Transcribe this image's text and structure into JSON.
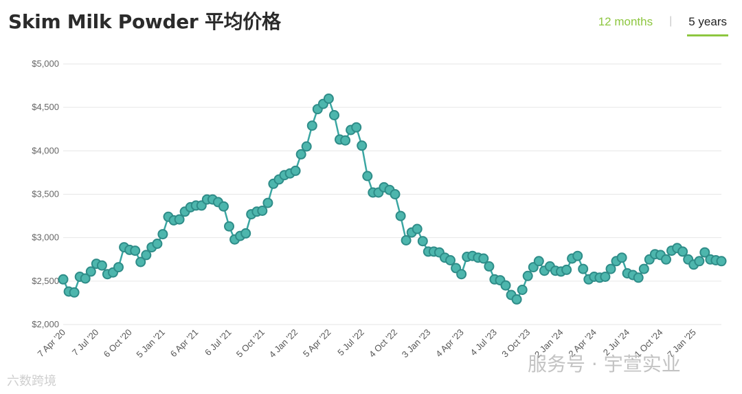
{
  "header": {
    "title": "Skim Milk Powder 平均价格",
    "tabs": [
      {
        "label": "12 months",
        "active": false
      },
      {
        "label": "5 years",
        "active": true
      }
    ]
  },
  "watermark": {
    "right": "服务号 · 宇萱实业",
    "left": "六数跨境"
  },
  "colors": {
    "line": "#3aa6a2",
    "marker_fill": "#4db6ad",
    "marker_stroke": "#2e8c88",
    "grid": "#e6e6e6",
    "tab_accent": "#8dc63f"
  },
  "chart_data": {
    "type": "line",
    "title": "Skim Milk Powder 平均价格",
    "ylim": [
      2000,
      5000
    ],
    "yticks": [
      {
        "value": 2000,
        "label": "$2,000"
      },
      {
        "value": 2500,
        "label": "$2,500"
      },
      {
        "value": 3000,
        "label": "$3,000"
      },
      {
        "value": 3500,
        "label": "$3,500"
      },
      {
        "value": 4000,
        "label": "$4,000"
      },
      {
        "value": 4500,
        "label": "$4,500"
      },
      {
        "value": 5000,
        "label": "$5,000"
      }
    ],
    "xticks": [
      {
        "index": 0,
        "label": "7 Apr '20"
      },
      {
        "index": 6,
        "label": "7 Jul '20"
      },
      {
        "index": 12,
        "label": "6 Oct '20"
      },
      {
        "index": 18,
        "label": "5 Jan '21"
      },
      {
        "index": 24,
        "label": "6 Apr '21"
      },
      {
        "index": 30,
        "label": "6 Jul '21"
      },
      {
        "index": 36,
        "label": "5 Oct '21"
      },
      {
        "index": 42,
        "label": "4 Jan '22"
      },
      {
        "index": 48,
        "label": "5 Apr '22"
      },
      {
        "index": 54,
        "label": "5 Jul '22"
      },
      {
        "index": 60,
        "label": "4 Oct '22"
      },
      {
        "index": 66,
        "label": "3 Jan '23"
      },
      {
        "index": 72,
        "label": "4 Apr '23"
      },
      {
        "index": 78,
        "label": "4 Jul '23"
      },
      {
        "index": 84,
        "label": "3 Oct '23"
      },
      {
        "index": 90,
        "label": "2 Jan '24"
      },
      {
        "index": 96,
        "label": "2 Apr '24"
      },
      {
        "index": 102,
        "label": "2 Jul '24"
      },
      {
        "index": 108,
        "label": "1 Oct '24"
      },
      {
        "index": 114,
        "label": "7 Jan '25"
      }
    ],
    "grid": true,
    "legend": "none",
    "values": [
      2520,
      2380,
      2370,
      2550,
      2530,
      2610,
      2700,
      2680,
      2580,
      2600,
      2660,
      2890,
      2860,
      2850,
      2720,
      2800,
      2890,
      2930,
      3040,
      3240,
      3200,
      3210,
      3300,
      3350,
      3370,
      3370,
      3440,
      3440,
      3410,
      3360,
      3130,
      2980,
      3020,
      3050,
      3270,
      3300,
      3310,
      3400,
      3620,
      3670,
      3720,
      3740,
      3770,
      3960,
      4050,
      4290,
      4480,
      4540,
      4600,
      4410,
      4130,
      4120,
      4240,
      4270,
      4060,
      3710,
      3520,
      3520,
      3580,
      3550,
      3500,
      3250,
      2970,
      3060,
      3100,
      2960,
      2840,
      2840,
      2830,
      2770,
      2740,
      2650,
      2580,
      2780,
      2790,
      2770,
      2760,
      2670,
      2520,
      2510,
      2450,
      2340,
      2290,
      2400,
      2560,
      2660,
      2730,
      2620,
      2670,
      2620,
      2610,
      2630,
      2760,
      2790,
      2640,
      2520,
      2550,
      2540,
      2550,
      2640,
      2730,
      2770,
      2590,
      2570,
      2540,
      2640,
      2750,
      2810,
      2800,
      2750,
      2850,
      2880,
      2840,
      2750,
      2690,
      2730,
      2830,
      2750,
      2740,
      2730
    ]
  }
}
